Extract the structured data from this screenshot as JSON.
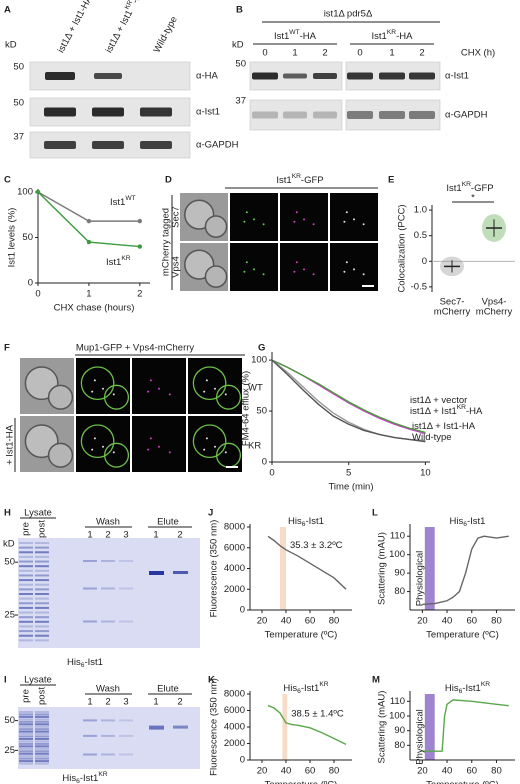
{
  "panels": {
    "letters": [
      "A",
      "B",
      "C",
      "D",
      "E",
      "F",
      "G",
      "H",
      "J",
      "L",
      "I",
      "K",
      "M"
    ],
    "A": {
      "lanes": [
        [
          "ist1Δ + Ist1-HA"
        ],
        [
          "ist1Δ + Ist1",
          {
            "sup": "KR"
          },
          "-HA"
        ],
        [
          "Wild-type"
        ]
      ],
      "kd": "kD",
      "mw": [
        "50",
        "50",
        "37"
      ],
      "antibodies": [
        "α-HA",
        "α-Ist1",
        "α-GAPDH"
      ]
    },
    "B": {
      "strain": "ist1Δ pdr5Δ",
      "groups": [
        [
          "Ist1",
          {
            "sup": "WT"
          },
          "-HA"
        ],
        [
          "Ist1",
          {
            "sup": "KR"
          },
          "-HA"
        ]
      ],
      "times": [
        "0",
        "1",
        "2",
        "0",
        "1",
        "2"
      ],
      "chx": "CHX (h)",
      "kd": "kD",
      "mw": [
        "50",
        "37"
      ],
      "antibodies": [
        "α-Ist1",
        "α-GAPDH"
      ]
    },
    "D": {
      "title": [
        "Ist1",
        {
          "sup": "KR"
        },
        "-GFP"
      ],
      "side": "mCherry tagged",
      "rows": [
        "Sec7",
        "Vps4"
      ]
    },
    "F": {
      "title": "Mup1-GFP + Vps4-mCherry",
      "side": "+ Ist1-HA",
      "rows": [
        "WT",
        "KR"
      ]
    },
    "H": {
      "lysate": "Lysate",
      "pre_post": [
        "pre",
        "post"
      ],
      "wash": "Wash",
      "wash_lanes": [
        "1",
        "2",
        "3"
      ],
      "elute": "Elute",
      "elute_lanes": [
        "1",
        "2"
      ],
      "kd": "kD",
      "mw": [
        "50",
        "25"
      ],
      "caption": [
        "His",
        {
          "sub": "6"
        },
        "-Ist1"
      ]
    },
    "I": {
      "lysate": "Lysate",
      "pre_post": [
        "pre",
        "post"
      ],
      "wash": "Wash",
      "wash_lanes": [
        "1",
        "2",
        "3"
      ],
      "elute": "Elute",
      "elute_lanes": [
        "1",
        "2"
      ],
      "mw": [
        "50",
        "25"
      ],
      "caption": [
        "His",
        {
          "sub": "6"
        },
        "-Ist1",
        {
          "sup": "KR"
        }
      ]
    }
  },
  "chart_data": [
    {
      "type": "line",
      "ylabel": "Ist1 levels (%)",
      "xlabel": "CHX chase (hours)",
      "x": [
        0,
        1,
        2
      ],
      "xlim": [
        0,
        2.2
      ],
      "xticks": [
        0,
        1,
        2
      ],
      "ylim": [
        0,
        100
      ],
      "yticks": [
        0,
        50,
        100
      ],
      "series": [
        {
          "name": [
            "Ist1",
            {
              "sup": "WT"
            }
          ],
          "color": "#7a7a7a",
          "values": [
            100,
            68,
            68
          ]
        },
        {
          "name": [
            "Ist1",
            {
              "sup": "KR"
            }
          ],
          "color": "#3f9a3f",
          "values": [
            100,
            45,
            40
          ]
        }
      ]
    },
    {
      "type": "dot",
      "title": [
        "Ist1",
        {
          "sup": "KR"
        },
        "-GFP"
      ],
      "ylabel": "Colocalization (PCC)",
      "categories": [
        [
          "Sec7-",
          "mCherry"
        ],
        [
          "Vps4-",
          "mCherry"
        ]
      ],
      "values": [
        -0.1,
        0.65
      ],
      "errors": [
        0.12,
        0.17
      ],
      "colors": [
        "#8a8a8a",
        "#4a9e3a"
      ],
      "ylim": [
        -0.6,
        1.1
      ],
      "yticks": [
        -0.5,
        0,
        0.5,
        {
          "value": 1,
          "label": "1.0"
        }
      ],
      "annotation": "*"
    },
    {
      "type": "line",
      "ylabel": "FM4-64 efflux (%)",
      "xlabel": "Time (min)",
      "x": [
        0,
        1,
        2,
        3,
        4,
        5,
        6,
        7,
        8,
        9,
        10
      ],
      "xlim": [
        0,
        10.3
      ],
      "xticks": [
        0,
        5,
        10
      ],
      "ylim": [
        0,
        105
      ],
      "yticks": [
        0,
        50,
        100
      ],
      "series": [
        {
          "name": [
            "ist1Δ + vector"
          ],
          "color": "#c83cc8",
          "values": [
            100,
            93,
            85,
            76,
            67,
            58,
            50,
            43,
            37,
            32,
            28
          ]
        },
        {
          "name": [
            "ist1Δ + Ist1",
            {
              "sup": "KR"
            },
            "-HA"
          ],
          "color": "#4a9e3a",
          "values": [
            100,
            93,
            85,
            77,
            68,
            59,
            51,
            44,
            38,
            33,
            29
          ]
        },
        {
          "name": [
            "ist1Δ + Ist1-HA"
          ],
          "color": "#9a9a9a",
          "values": [
            100,
            88,
            74,
            60,
            48,
            39,
            32,
            27,
            24,
            22,
            21
          ]
        },
        {
          "name": [
            "Wild-type"
          ],
          "color": "#555555",
          "values": [
            100,
            86,
            71,
            57,
            45,
            37,
            31,
            27,
            24,
            22,
            20
          ]
        }
      ]
    },
    {
      "type": "line",
      "title": [
        "His",
        {
          "sub": "6"
        },
        "-Ist1"
      ],
      "ylabel": "Fluorescence (350 nm)",
      "xlabel": "Temperature (ºC)",
      "x": [
        25,
        30,
        35,
        40,
        50,
        60,
        70,
        80,
        90
      ],
      "xlim": [
        10,
        95
      ],
      "xticks": [
        20,
        40,
        60,
        80
      ],
      "ylim": [
        0,
        8000
      ],
      "yticks": [
        0,
        2000,
        4000,
        6000,
        8000
      ],
      "series": [
        {
          "color": "#666666",
          "values": [
            7100,
            6700,
            6200,
            5800,
            5200,
            4500,
            3800,
            3100,
            2000
          ]
        }
      ],
      "band": [
        35,
        40
      ],
      "band_color": "#f6dcc6",
      "annotation": "35.3 ± 3.2ºC",
      "annotation_color": "#e0a070"
    },
    {
      "type": "line",
      "title": [
        "His",
        {
          "sub": "6"
        },
        "-Ist1",
        {
          "sup": "KR"
        }
      ],
      "ylabel": "Fluorescence (350 nm)",
      "xlabel": "Temperature (ºC)",
      "x": [
        25,
        30,
        35,
        40,
        45,
        50,
        60,
        70,
        80,
        90
      ],
      "xlim": [
        10,
        95
      ],
      "xticks": [
        20,
        40,
        60,
        80
      ],
      "ylim": [
        0,
        8000
      ],
      "yticks": [
        0,
        2000,
        4000,
        6000,
        8000
      ],
      "series": [
        {
          "color": "#5aa84a",
          "values": [
            6600,
            6300,
            5700,
            4500,
            4300,
            4200,
            3900,
            3300,
            2600,
            1900
          ]
        }
      ],
      "band": [
        37,
        41
      ],
      "band_color": "#f6dcc6",
      "annotation": "38.5 ± 1.4ºC",
      "annotation_color": "#e0a070"
    },
    {
      "type": "line",
      "title": [
        "His",
        {
          "sub": "6"
        },
        "-Ist1"
      ],
      "ylabel": "Scattering (mAU)",
      "xlabel": "Temperature (ºC)",
      "x": [
        20,
        30,
        40,
        45,
        50,
        55,
        60,
        65,
        70,
        80,
        90
      ],
      "xlim": [
        10,
        95
      ],
      "xticks": [
        20,
        40,
        60,
        80
      ],
      "ylim": [
        70,
        115
      ],
      "yticks": [
        80,
        90,
        100,
        110
      ],
      "series": [
        {
          "color": "#666666",
          "values": [
            73,
            73.5,
            75,
            77,
            80,
            90,
            103,
            109,
            110,
            109,
            110
          ]
        }
      ],
      "band": [
        22,
        30
      ],
      "band_color": "#9f84cf",
      "band_label": "Physiological"
    },
    {
      "type": "line",
      "title": [
        "His",
        {
          "sub": "6"
        },
        "-Ist1",
        {
          "sup": "KR"
        }
      ],
      "ylabel": "Scattering (mAU)",
      "xlabel": "Temperature (ºC)",
      "x": [
        20,
        36,
        38,
        40,
        45,
        60,
        80,
        90
      ],
      "xlim": [
        10,
        95
      ],
      "xticks": [
        20,
        40,
        60,
        80
      ],
      "ylim": [
        70,
        115
      ],
      "yticks": [
        80,
        90,
        100,
        110
      ],
      "series": [
        {
          "color": "#5aa84a",
          "values": [
            76,
            76,
            100,
            108,
            111,
            110,
            108,
            107
          ]
        }
      ],
      "band": [
        22,
        30
      ],
      "band_color": "#9f84cf",
      "band_label": "Physiological"
    }
  ]
}
